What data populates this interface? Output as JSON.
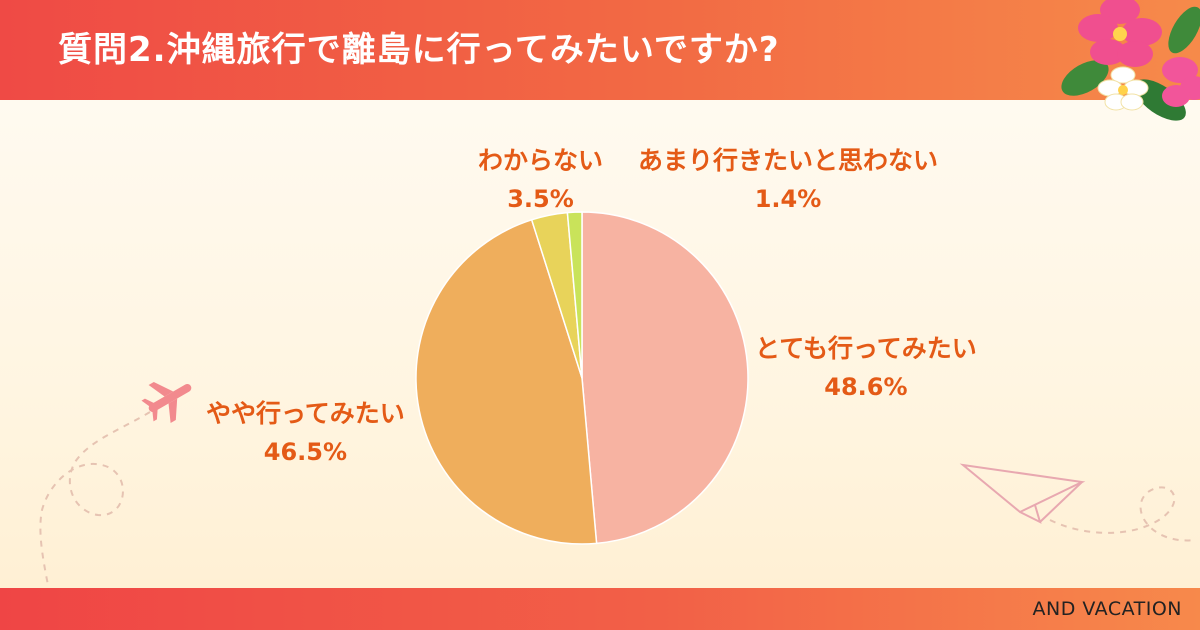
{
  "header": {
    "title": "質問2.沖縄旅行で離島に行ってみたいですか?"
  },
  "footer": {
    "brand": "AND VACATION"
  },
  "chart_data": {
    "type": "pie",
    "start_angle_deg": 0,
    "direction": "clockwise",
    "slices": [
      {
        "label": "とても行ってみたい",
        "value": 48.6,
        "display": "48.6%",
        "color": "#f7b3a2"
      },
      {
        "label": "やや行ってみたい",
        "value": 46.5,
        "display": "46.5%",
        "color": "#efae5c"
      },
      {
        "label": "わからない",
        "value": 3.5,
        "display": "3.5%",
        "color": "#e8d35a"
      },
      {
        "label": "あまり行きたいと思わない",
        "value": 1.4,
        "display": "1.4%",
        "color": "#c9e35a"
      }
    ]
  },
  "decor": {
    "icons": [
      "hibiscus-flower-icon",
      "airplane-icon",
      "paper-plane-icon"
    ]
  }
}
